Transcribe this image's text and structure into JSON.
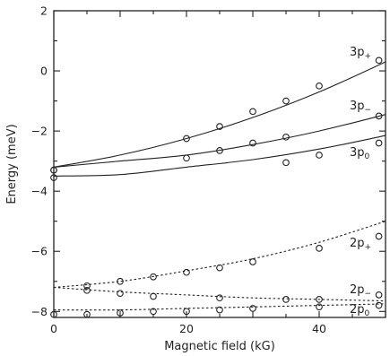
{
  "chart_data": {
    "type": "scatter",
    "xlabel": "Magnetic field (kG)",
    "ylabel": "Energy (meV)",
    "xlim": [
      0,
      50
    ],
    "ylim": [
      -8.2,
      2
    ],
    "xticks": [
      0,
      20,
      40
    ],
    "yticks": [
      2,
      0,
      -2,
      -4,
      -6,
      -8
    ],
    "grid": false,
    "legend": "none",
    "series": [
      {
        "name": "3p",
        "sub": "+",
        "dashed": false,
        "curve": [
          [
            0,
            -3.2
          ],
          [
            10,
            -2.8
          ],
          [
            20,
            -2.25
          ],
          [
            30,
            -1.55
          ],
          [
            40,
            -0.7
          ],
          [
            50,
            0.3
          ]
        ],
        "points": [
          [
            0,
            -3.3
          ],
          [
            20,
            -2.25
          ],
          [
            25,
            -1.85
          ],
          [
            30,
            -1.35
          ],
          [
            35,
            -1.0
          ],
          [
            40,
            -0.5
          ],
          [
            49,
            0.35
          ]
        ]
      },
      {
        "name": "3p",
        "sub": "−",
        "dashed": false,
        "curve": [
          [
            0,
            -3.2
          ],
          [
            10,
            -3.0
          ],
          [
            20,
            -2.8
          ],
          [
            30,
            -2.45
          ],
          [
            40,
            -2.0
          ],
          [
            50,
            -1.45
          ]
        ],
        "points": [
          [
            0,
            -3.3
          ],
          [
            20,
            -2.9
          ],
          [
            25,
            -2.65
          ],
          [
            30,
            -2.4
          ],
          [
            35,
            -2.2
          ],
          [
            49,
            -1.5
          ]
        ]
      },
      {
        "name": "3p",
        "sub": "0",
        "dashed": false,
        "curve": [
          [
            0,
            -3.5
          ],
          [
            10,
            -3.45
          ],
          [
            20,
            -3.2
          ],
          [
            30,
            -2.95
          ],
          [
            40,
            -2.6
          ],
          [
            50,
            -2.15
          ]
        ],
        "points": [
          [
            0,
            -3.55
          ],
          [
            35,
            -3.05
          ],
          [
            40,
            -2.8
          ],
          [
            49,
            -2.4
          ]
        ]
      },
      {
        "name": "2p",
        "sub": "+",
        "dashed": true,
        "curve": [
          [
            0,
            -7.2
          ],
          [
            10,
            -7.0
          ],
          [
            20,
            -6.65
          ],
          [
            30,
            -6.25
          ],
          [
            40,
            -5.7
          ],
          [
            50,
            -5.0
          ]
        ],
        "points": [
          [
            5,
            -7.15
          ],
          [
            10,
            -7.0
          ],
          [
            15,
            -6.85
          ],
          [
            20,
            -6.7
          ],
          [
            25,
            -6.55
          ],
          [
            30,
            -6.35
          ],
          [
            40,
            -5.9
          ],
          [
            49,
            -5.5
          ]
        ]
      },
      {
        "name": "2p",
        "sub": "−",
        "dashed": true,
        "curve": [
          [
            0,
            -7.2
          ],
          [
            10,
            -7.35
          ],
          [
            20,
            -7.45
          ],
          [
            30,
            -7.55
          ],
          [
            40,
            -7.6
          ],
          [
            50,
            -7.65
          ]
        ],
        "points": [
          [
            5,
            -7.3
          ],
          [
            10,
            -7.4
          ],
          [
            15,
            -7.5
          ],
          [
            25,
            -7.55
          ],
          [
            35,
            -7.6
          ],
          [
            40,
            -7.6
          ],
          [
            49,
            -7.45
          ]
        ]
      },
      {
        "name": "2p",
        "sub": "0",
        "dashed": true,
        "curve": [
          [
            0,
            -7.95
          ],
          [
            10,
            -7.95
          ],
          [
            20,
            -7.9
          ],
          [
            30,
            -7.85
          ],
          [
            40,
            -7.8
          ],
          [
            50,
            -7.75
          ]
        ],
        "points": [
          [
            0,
            -8.1
          ],
          [
            5,
            -8.1
          ],
          [
            10,
            -8.05
          ],
          [
            15,
            -8.0
          ],
          [
            20,
            -8.0
          ],
          [
            25,
            -7.95
          ],
          [
            30,
            -7.9
          ],
          [
            40,
            -7.85
          ],
          [
            49,
            -7.8
          ]
        ]
      }
    ]
  }
}
